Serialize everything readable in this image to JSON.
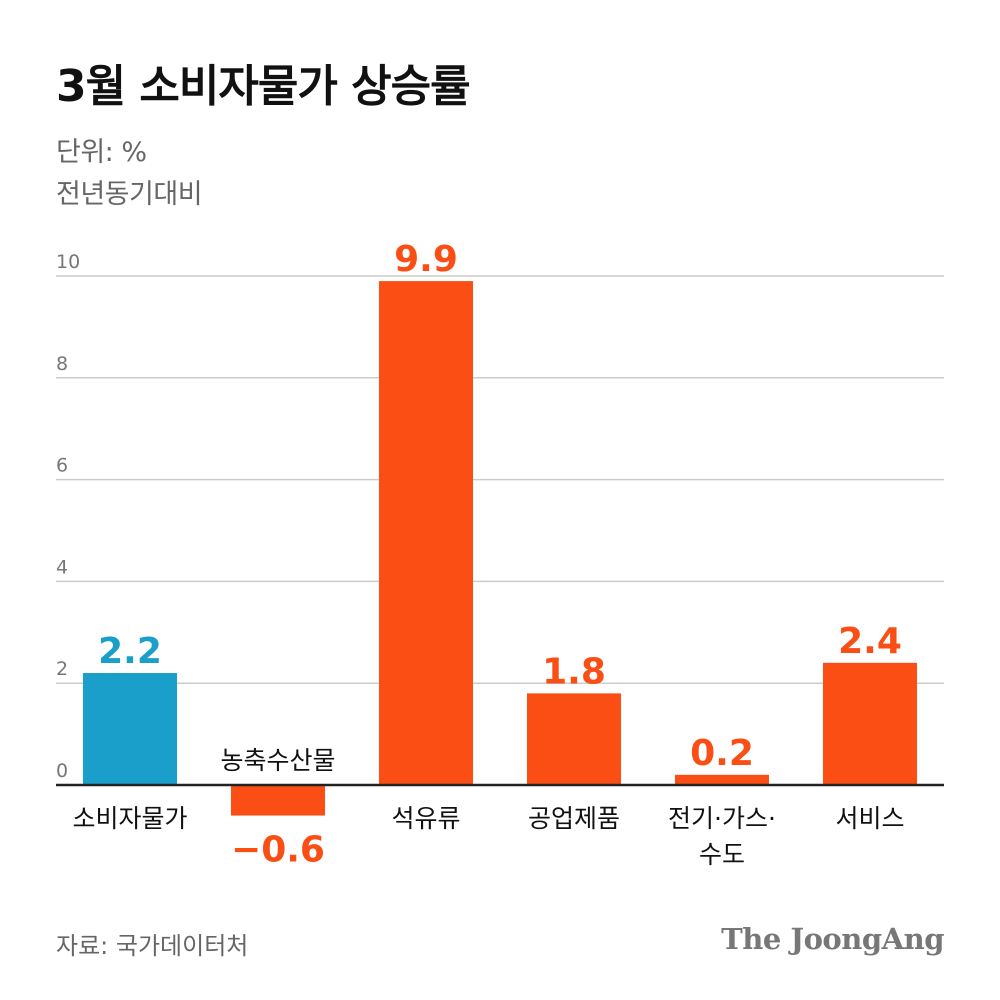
{
  "title": "3월 소비자물가 상승률",
  "unit_label": "단위: %",
  "basis_label": "전년동기대비",
  "source": "자료: 국가데이터처",
  "logo": "The JoongAng",
  "colors": {
    "highlight": "#1A9FCB",
    "bar": "#FA4E14",
    "grid": "#cccccc",
    "axis": "#222222",
    "tick": "#777777"
  },
  "chart_data": {
    "type": "bar",
    "title": "3월 소비자물가 상승률",
    "subtitle": "단위: % / 전년동기대비",
    "xlabel": "",
    "ylabel": "",
    "ylim": [
      0,
      10
    ],
    "yticks": [
      0,
      2,
      4,
      6,
      8,
      10
    ],
    "grid": true,
    "categories": [
      "소비자물가",
      "농축수산물",
      "석유류",
      "공업제품",
      "전기·가스·수도",
      "서비스"
    ],
    "category_lines": [
      [
        "소비자물가"
      ],
      [
        "농축수산물"
      ],
      [
        "석유류"
      ],
      [
        "공업제품"
      ],
      [
        "전기·가스·",
        "수도"
      ],
      [
        "서비스"
      ]
    ],
    "values": [
      2.2,
      -0.6,
      9.9,
      1.8,
      0.2,
      2.4
    ],
    "value_labels": [
      "2.2",
      "−0.6",
      "9.9",
      "1.8",
      "0.2",
      "2.4"
    ],
    "highlight_index": 0
  }
}
